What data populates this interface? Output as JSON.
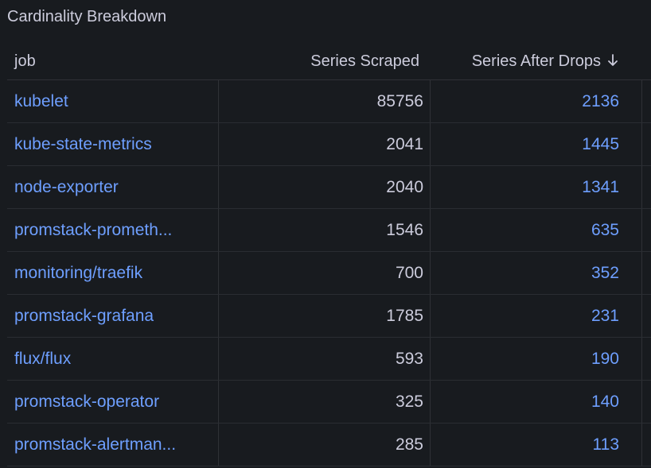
{
  "panel": {
    "title": "Cardinality Breakdown"
  },
  "table": {
    "columns": [
      {
        "label": "job"
      },
      {
        "label": "Series Scraped"
      },
      {
        "label": "Series After Drops",
        "sort": "descending",
        "sort_icon": "arrow-down-icon"
      }
    ],
    "rows": [
      {
        "job": "kubelet",
        "scraped": "85756",
        "after": "2136"
      },
      {
        "job": "kube-state-metrics",
        "scraped": "2041",
        "after": "1445"
      },
      {
        "job": "node-exporter",
        "scraped": "2040",
        "after": "1341"
      },
      {
        "job": "promstack-prometh...",
        "scraped": "1546",
        "after": "635"
      },
      {
        "job": "monitoring/traefik",
        "scraped": "700",
        "after": "352"
      },
      {
        "job": "promstack-grafana",
        "scraped": "1785",
        "after": "231"
      },
      {
        "job": "flux/flux",
        "scraped": "593",
        "after": "190"
      },
      {
        "job": "promstack-operator",
        "scraped": "325",
        "after": "140"
      },
      {
        "job": "promstack-alertman...",
        "scraped": "285",
        "after": "113"
      }
    ]
  },
  "colors": {
    "background": "#181b1f",
    "text": "#ccccdc",
    "link": "#6e9fff",
    "border": "#2f3136"
  }
}
